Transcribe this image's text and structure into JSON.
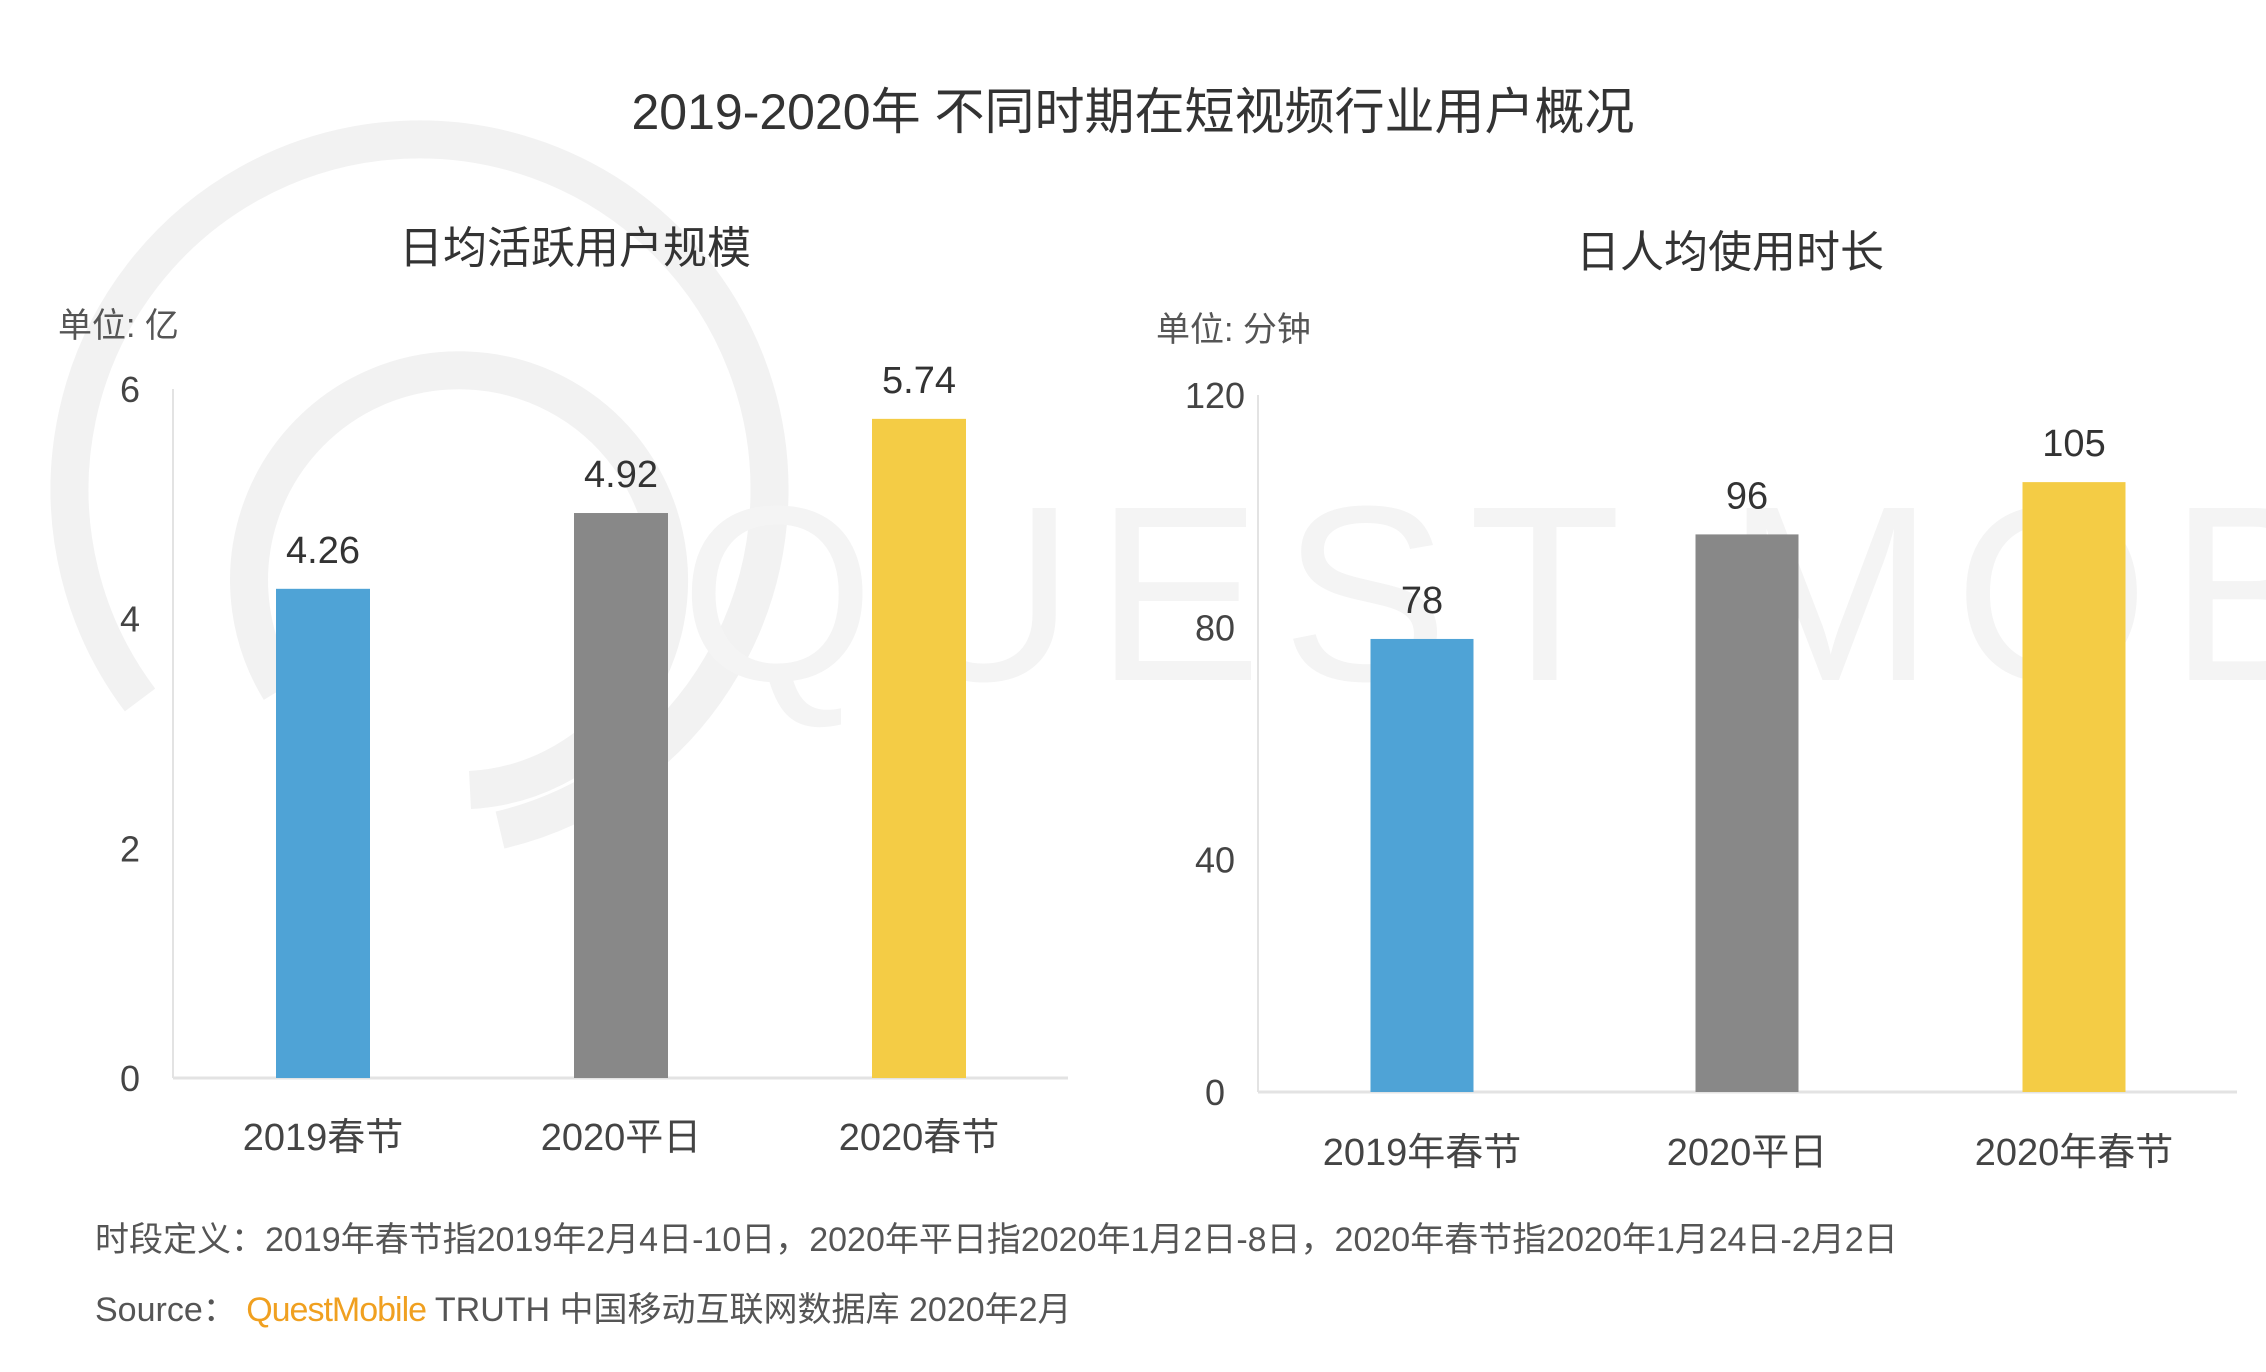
{
  "title": "2019-2020年 不同时期在短视频行业用户概况",
  "watermark": "QUEST MOBILE",
  "colors": {
    "blue": "#4FA3D6",
    "gray": "#888888",
    "yellow": "#F4CC45"
  },
  "chart_data": [
    {
      "type": "bar",
      "title": "日均活跃用户规模",
      "unit_label": "单位: 亿",
      "categories": [
        "2019春节",
        "2020平日",
        "2020春节"
      ],
      "values": [
        4.26,
        4.92,
        5.74
      ],
      "value_labels": [
        "4.26",
        "4.92",
        "5.74"
      ],
      "bar_colors": [
        "#4FA3D6",
        "#888888",
        "#F4CC45"
      ],
      "ylim": [
        0,
        6
      ],
      "yticks": [
        0,
        2,
        4,
        6
      ],
      "ytick_labels": [
        "0",
        "2",
        "4",
        "6"
      ],
      "xlabel": "",
      "ylabel": "单位: 亿",
      "grid": false
    },
    {
      "type": "bar",
      "title": "日人均使用时长",
      "unit_label": "单位: 分钟",
      "categories": [
        "2019年春节",
        "2020平日",
        "2020年春节"
      ],
      "values": [
        78,
        96,
        105
      ],
      "value_labels": [
        "78",
        "96",
        "105"
      ],
      "bar_colors": [
        "#4FA3D6",
        "#888888",
        "#F4CC45"
      ],
      "ylim": [
        0,
        120
      ],
      "yticks": [
        0,
        40,
        80,
        120
      ],
      "ytick_labels": [
        "0",
        "40",
        "80",
        "120"
      ],
      "xlabel": "",
      "ylabel": "单位: 分钟",
      "grid": false
    }
  ],
  "footer": {
    "definition": "时段定义：2019年春节指2019年2月4日-10日，2020年平日指2020年1月2日-8日，2020年春节指2020年1月24日-2月2日",
    "source_label": "Source：",
    "source_brand": "QuestMobile",
    "source_rest": "TRUTH 中国移动互联网数据库 2020年2月"
  }
}
